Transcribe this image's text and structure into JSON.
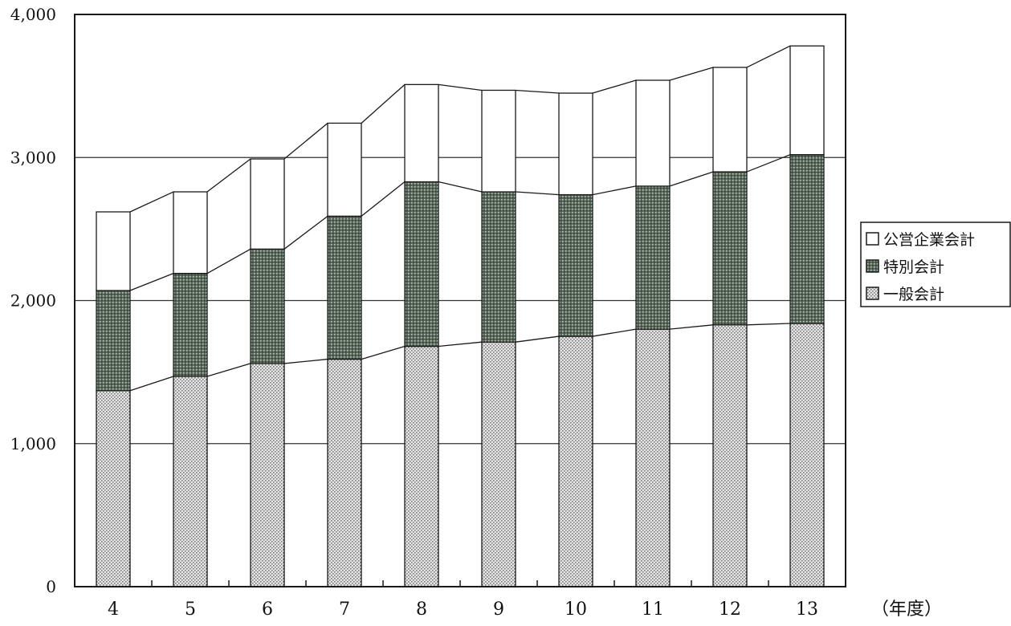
{
  "chart_data": {
    "type": "bar",
    "stacked": true,
    "categories": [
      "4",
      "5",
      "6",
      "7",
      "8",
      "9",
      "10",
      "11",
      "12",
      "13"
    ],
    "x_unit_label": "（年度）",
    "y_ticks": [
      "0",
      "1,000",
      "2,000",
      "3,000",
      "4,000"
    ],
    "ylim": [
      0,
      4000
    ],
    "grid": true,
    "legend_position": "right",
    "series": [
      {
        "name": "一般会計",
        "values": [
          1370,
          1470,
          1560,
          1590,
          1680,
          1710,
          1750,
          1800,
          1830,
          1840
        ],
        "pattern": "dotted-light"
      },
      {
        "name": "特別会計",
        "values": [
          700,
          720,
          800,
          1000,
          1150,
          1050,
          990,
          1000,
          1070,
          1180
        ],
        "pattern": "dotted-dark"
      },
      {
        "name": "公営企業会計",
        "values": [
          550,
          570,
          630,
          650,
          680,
          710,
          710,
          740,
          730,
          760
        ],
        "pattern": "white"
      }
    ],
    "legend_order": [
      "公営企業会計",
      "特別会計",
      "一般会計"
    ]
  },
  "colors": {
    "axis": "#1a1a1a",
    "grid": "#333333",
    "bar_stroke": "#1a1a1a",
    "light_fill": "#cfcfcf",
    "dark_fill": "#6a7a6a"
  }
}
